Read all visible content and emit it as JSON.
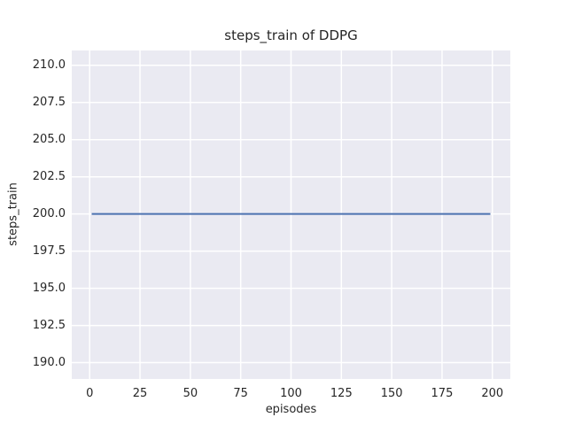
{
  "figure": {
    "title": "steps_train of DDPG",
    "xlabel": "episodes",
    "ylabel": "steps_train"
  },
  "chart_data": {
    "type": "line",
    "title": "steps_train of DDPG",
    "xlabel": "episodes",
    "ylabel": "steps_train",
    "xlim": [
      -8.9,
      208.9
    ],
    "ylim": [
      188.9,
      211.0
    ],
    "xticks": [
      0,
      25,
      50,
      75,
      100,
      125,
      150,
      175,
      200
    ],
    "xtick_labels": [
      "0",
      "25",
      "50",
      "75",
      "100",
      "125",
      "150",
      "175",
      "200"
    ],
    "yticks": [
      190.0,
      192.5,
      195.0,
      197.5,
      200.0,
      202.5,
      205.0,
      207.5,
      210.0
    ],
    "ytick_labels": [
      "190.0",
      "192.5",
      "195.0",
      "197.5",
      "200.0",
      "202.5",
      "205.0",
      "207.5",
      "210.0"
    ],
    "grid": true,
    "legend": false,
    "series": [
      {
        "name": "steps_train",
        "color": "#4c72b0",
        "x": [
          1,
          199
        ],
        "y": [
          200,
          200
        ],
        "constant_value": 200
      }
    ],
    "styles": {
      "figure_background": "#ffffff",
      "axes_background": "#eaeaf2",
      "grid_color": "#ffffff",
      "grid_line_width": 1.5,
      "text_color": "#262626",
      "line_width": 2
    }
  }
}
